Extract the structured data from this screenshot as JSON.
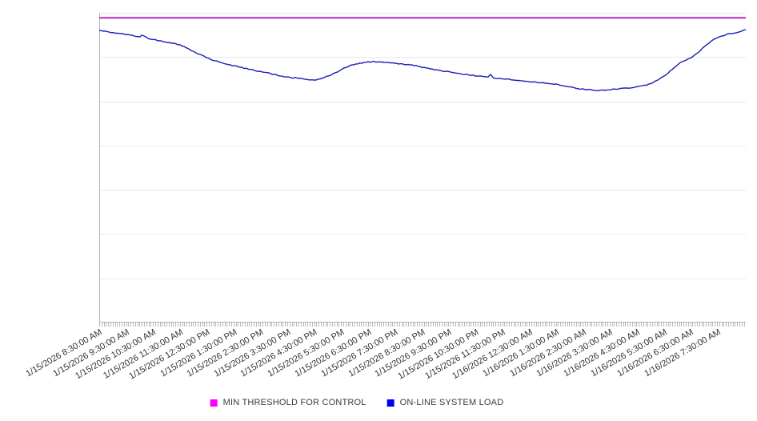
{
  "chart_data": {
    "type": "line",
    "title": "",
    "xlabel": "",
    "ylabel": "",
    "y_axis": {
      "labels_visible": false,
      "implied_scale": [
        0,
        100
      ],
      "grid_divisions": 7,
      "grid_visible": true
    },
    "x_axis": {
      "minor_tick_interval_hours": 0.0833,
      "categories": [
        "1/15/2026 8:30:00 AM",
        "1/15/2026 9:30:00 AM",
        "1/15/2026 10:30:00 AM",
        "1/15/2026 11:30:00 AM",
        "1/15/2026 12:30:00 PM",
        "1/15/2026 1:30:00 PM",
        "1/15/2026 2:30:00 PM",
        "1/15/2026 3:30:00 PM",
        "1/15/2026 4:30:00 PM",
        "1/15/2026 5:30:00 PM",
        "1/15/2026 6:30:00 PM",
        "1/15/2026 7:30:00 PM",
        "1/15/2026 8:30:00 PM",
        "1/15/2026 9:30:00 PM",
        "1/15/2026 10:30:00 PM",
        "1/15/2026 11:30:00 PM",
        "1/16/2026 12:30:00 AM",
        "1/16/2026 1:30:00 AM",
        "1/16/2026 2:30:00 AM",
        "1/16/2026 3:30:00 AM",
        "1/16/2026 4:30:00 AM",
        "1/16/2026 5:30:00 AM",
        "1/16/2026 6:30:00 AM",
        "1/16/2026 7:30:00 AM"
      ]
    },
    "hours_span": 24.06,
    "series": [
      {
        "name": "MIN THRESHOLD FOR CONTROL",
        "kind": "horizontal-threshold",
        "color": "#C322C3",
        "value": 98.4
      },
      {
        "name": "ON-LINE SYSTEM LOAD",
        "kind": "line",
        "color": "#1A1AB8",
        "points": [
          [
            0,
            94.3
          ],
          [
            0.36,
            93.8
          ],
          [
            0.77,
            93.3
          ],
          [
            1.16,
            92.8
          ],
          [
            1.52,
            92.2
          ],
          [
            1.58,
            92.8
          ],
          [
            1.91,
            91.5
          ],
          [
            2.26,
            91.0
          ],
          [
            2.62,
            90.4
          ],
          [
            3.01,
            89.7
          ],
          [
            3.37,
            88.1
          ],
          [
            3.75,
            86.6
          ],
          [
            4.14,
            85.0
          ],
          [
            4.5,
            84.0
          ],
          [
            4.88,
            83.2
          ],
          [
            5.24,
            82.4
          ],
          [
            5.63,
            81.7
          ],
          [
            5.99,
            81.1
          ],
          [
            6.37,
            80.4
          ],
          [
            6.73,
            79.6
          ],
          [
            7.12,
            79.1
          ],
          [
            7.47,
            78.8
          ],
          [
            7.77,
            78.4
          ],
          [
            8.07,
            78.3
          ],
          [
            8.37,
            79.1
          ],
          [
            8.61,
            79.8
          ],
          [
            8.87,
            80.9
          ],
          [
            9.11,
            82.2
          ],
          [
            9.41,
            83.2
          ],
          [
            9.62,
            83.5
          ],
          [
            9.86,
            84.0
          ],
          [
            10.15,
            84.2
          ],
          [
            10.45,
            84.1
          ],
          [
            10.75,
            84.0
          ],
          [
            11.05,
            83.7
          ],
          [
            11.35,
            83.3
          ],
          [
            11.64,
            83.2
          ],
          [
            11.94,
            82.6
          ],
          [
            12.3,
            81.9
          ],
          [
            12.69,
            81.4
          ],
          [
            13.07,
            80.9
          ],
          [
            13.43,
            80.4
          ],
          [
            13.82,
            79.8
          ],
          [
            14.17,
            79.6
          ],
          [
            14.47,
            79.3
          ],
          [
            14.56,
            80.1
          ],
          [
            14.68,
            78.9
          ],
          [
            15.16,
            78.6
          ],
          [
            15.51,
            78.2
          ],
          [
            15.9,
            77.9
          ],
          [
            16.26,
            77.6
          ],
          [
            16.65,
            77.3
          ],
          [
            17.0,
            77.0
          ],
          [
            17.39,
            76.2
          ],
          [
            17.75,
            75.6
          ],
          [
            18.13,
            75.2
          ],
          [
            18.49,
            74.9
          ],
          [
            18.88,
            75.1
          ],
          [
            19.24,
            75.3
          ],
          [
            19.62,
            75.7
          ],
          [
            19.98,
            76.1
          ],
          [
            20.37,
            76.6
          ],
          [
            20.58,
            77.3
          ],
          [
            20.79,
            78.3
          ],
          [
            20.96,
            79.3
          ],
          [
            21.11,
            80.1
          ],
          [
            21.32,
            81.7
          ],
          [
            21.56,
            83.5
          ],
          [
            21.77,
            84.5
          ],
          [
            21.98,
            85.3
          ],
          [
            22.22,
            86.8
          ],
          [
            22.45,
            88.6
          ],
          [
            22.69,
            90.2
          ],
          [
            22.93,
            91.7
          ],
          [
            23.17,
            92.5
          ],
          [
            23.41,
            93.3
          ],
          [
            23.65,
            93.5
          ],
          [
            23.85,
            93.9
          ],
          [
            24.06,
            94.6
          ]
        ]
      }
    ],
    "legend_position": "bottom"
  },
  "legend": {
    "items": [
      {
        "label": "MIN THRESHOLD FOR CONTROL",
        "color": "#FF00FF"
      },
      {
        "label": "ON-LINE SYSTEM LOAD",
        "color": "#0000F5"
      }
    ]
  },
  "colors": {
    "background": "#FFFFFF",
    "gridline": "#E9E9E9",
    "axis": "#B8B8B8",
    "label_text": "#333333"
  }
}
